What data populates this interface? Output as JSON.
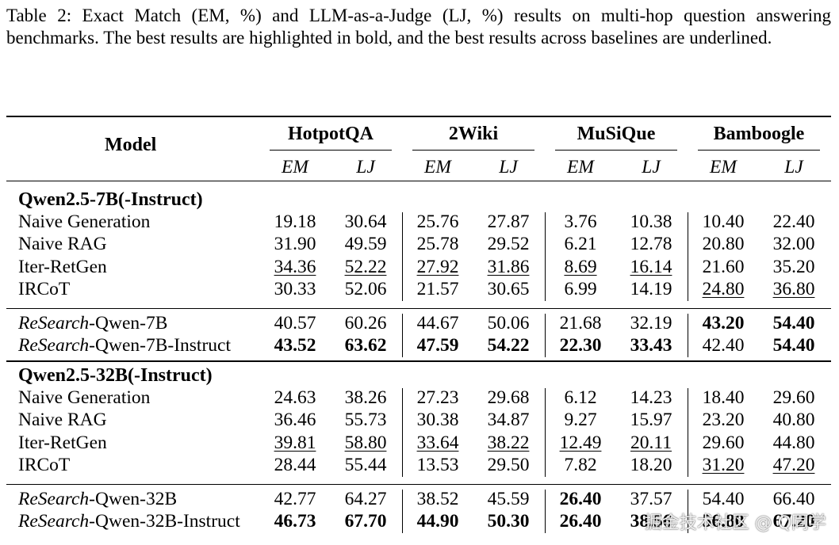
{
  "caption": "Table 2: Exact Match (EM, %) and LLM-as-a-Judge (LJ, %) results on multi-hop question answering benchmarks. The best results are highlighted in bold, and the best results across baselines are underlined.",
  "header": {
    "model_label": "Model",
    "datasets": [
      "HotpotQA",
      "2Wiki",
      "MuSiQue",
      "Bamboogle"
    ],
    "metrics": [
      "EM",
      "LJ",
      "EM",
      "LJ",
      "EM",
      "LJ",
      "EM",
      "LJ"
    ]
  },
  "groups": [
    {
      "title": "Qwen2.5-7B(-Instruct)",
      "baselines": [
        {
          "name": "Naive Generation",
          "values": [
            "19.18",
            "30.64",
            "25.76",
            "27.87",
            "3.76",
            "10.38",
            "10.40",
            "22.40"
          ],
          "bold": [],
          "underline": []
        },
        {
          "name": "Naive RAG",
          "values": [
            "31.90",
            "49.59",
            "25.78",
            "29.52",
            "6.21",
            "12.78",
            "20.80",
            "32.00"
          ],
          "bold": [],
          "underline": []
        },
        {
          "name": "Iter-RetGen",
          "values": [
            "34.36",
            "52.22",
            "27.92",
            "31.86",
            "8.69",
            "16.14",
            "21.60",
            "35.20"
          ],
          "bold": [],
          "underline": [
            0,
            1,
            2,
            3,
            4,
            5
          ]
        },
        {
          "name": "IRCoT",
          "values": [
            "30.33",
            "52.06",
            "21.57",
            "30.65",
            "6.99",
            "14.19",
            "24.80",
            "36.80"
          ],
          "bold": [],
          "underline": [
            6,
            7
          ]
        }
      ],
      "ours": [
        {
          "name_italic": "ReSearch",
          "name_suffix": "-Qwen-7B",
          "values": [
            "40.57",
            "60.26",
            "44.67",
            "50.06",
            "21.68",
            "32.19",
            "43.20",
            "54.40"
          ],
          "bold": [
            6,
            7
          ],
          "underline": []
        },
        {
          "name_italic": "ReSearch",
          "name_suffix": "-Qwen-7B-Instruct",
          "values": [
            "43.52",
            "63.62",
            "47.59",
            "54.22",
            "22.30",
            "33.43",
            "42.40",
            "54.40"
          ],
          "bold": [
            0,
            1,
            2,
            3,
            4,
            5,
            7
          ],
          "underline": []
        }
      ]
    },
    {
      "title": "Qwen2.5-32B(-Instruct)",
      "baselines": [
        {
          "name": "Naive Generation",
          "values": [
            "24.63",
            "38.26",
            "27.23",
            "29.68",
            "6.12",
            "14.23",
            "18.40",
            "29.60"
          ],
          "bold": [],
          "underline": []
        },
        {
          "name": "Naive RAG",
          "values": [
            "36.46",
            "55.73",
            "30.38",
            "34.87",
            "9.27",
            "15.97",
            "23.20",
            "40.80"
          ],
          "bold": [],
          "underline": []
        },
        {
          "name": "Iter-RetGen",
          "values": [
            "39.81",
            "58.80",
            "33.64",
            "38.22",
            "12.49",
            "20.11",
            "29.60",
            "44.80"
          ],
          "bold": [],
          "underline": [
            0,
            1,
            2,
            3,
            4,
            5
          ]
        },
        {
          "name": "IRCoT",
          "values": [
            "28.44",
            "55.44",
            "13.53",
            "29.50",
            "7.82",
            "18.20",
            "31.20",
            "47.20"
          ],
          "bold": [],
          "underline": [
            6,
            7
          ]
        }
      ],
      "ours": [
        {
          "name_italic": "ReSearch",
          "name_suffix": "-Qwen-32B",
          "values": [
            "42.77",
            "64.27",
            "38.52",
            "45.59",
            "26.40",
            "37.57",
            "54.40",
            "66.40"
          ],
          "bold": [
            4
          ],
          "underline": []
        },
        {
          "name_italic": "ReSearch",
          "name_suffix": "-Qwen-32B-Instruct",
          "values": [
            "46.73",
            "67.70",
            "44.90",
            "50.30",
            "26.40",
            "38.56",
            "56.80",
            "67.20"
          ],
          "bold": [
            0,
            1,
            2,
            3,
            4,
            5,
            6,
            7
          ],
          "underline": []
        }
      ]
    }
  ],
  "watermark": "掘金技术社区 @ Q同学"
}
